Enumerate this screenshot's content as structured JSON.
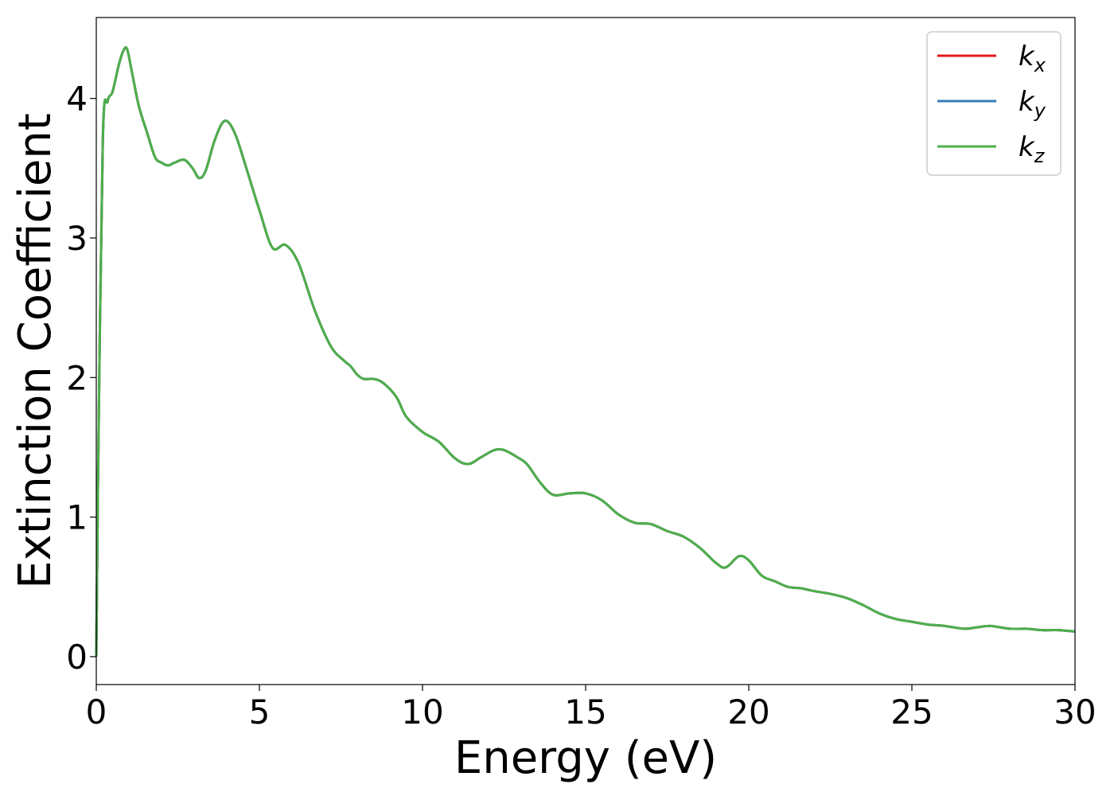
{
  "chart_data": {
    "type": "line",
    "xlabel": "Energy (eV)",
    "ylabel": "Extinction Coefficient",
    "xlim": [
      0,
      30
    ],
    "ylim": [
      -0.2,
      4.58
    ],
    "xticks": [
      0,
      5,
      10,
      15,
      20,
      25,
      30
    ],
    "yticks": [
      0,
      1,
      2,
      3,
      4
    ],
    "grid": false,
    "legend_position": "top-right",
    "series": [
      {
        "name": "k_x",
        "base": "k",
        "sub": "x",
        "color": "#e41a1c",
        "x": [
          0,
          0.05,
          0.2,
          0.35,
          0.5,
          0.7,
          0.85,
          0.95,
          1.1,
          1.3,
          1.55,
          1.8,
          2.0,
          2.2,
          2.4,
          2.7,
          2.95,
          3.15,
          3.35,
          3.6,
          3.85,
          4.05,
          4.3,
          4.6,
          5.0,
          5.4,
          5.8,
          6.2,
          6.7,
          7.2,
          7.6,
          7.8,
          8.0,
          8.2,
          8.5,
          8.8,
          9.2,
          9.5,
          10.0,
          10.5,
          11.0,
          11.4,
          11.8,
          12.2,
          12.5,
          12.9,
          13.2,
          13.6,
          14.0,
          14.5,
          15.0,
          15.5,
          16.0,
          16.5,
          17.0,
          17.5,
          18.0,
          18.5,
          19.0,
          19.3,
          19.7,
          20.0,
          20.4,
          20.8,
          21.2,
          21.6,
          22.0,
          22.5,
          23.0,
          23.5,
          24.0,
          24.5,
          25.0,
          25.5,
          26.0,
          26.6,
          27.0,
          27.4,
          28.0,
          28.5,
          29.0,
          29.5,
          30.0
        ],
        "values": [
          0.0,
          1.2,
          3.7,
          3.98,
          4.05,
          4.25,
          4.35,
          4.35,
          4.18,
          3.95,
          3.76,
          3.58,
          3.54,
          3.52,
          3.54,
          3.56,
          3.5,
          3.43,
          3.48,
          3.68,
          3.82,
          3.83,
          3.72,
          3.5,
          3.2,
          2.93,
          2.95,
          2.82,
          2.48,
          2.22,
          2.12,
          2.08,
          2.02,
          1.99,
          1.99,
          1.96,
          1.86,
          1.72,
          1.61,
          1.54,
          1.42,
          1.38,
          1.43,
          1.48,
          1.48,
          1.43,
          1.38,
          1.25,
          1.16,
          1.17,
          1.17,
          1.12,
          1.02,
          0.96,
          0.95,
          0.9,
          0.86,
          0.78,
          0.67,
          0.64,
          0.72,
          0.69,
          0.58,
          0.54,
          0.5,
          0.49,
          0.47,
          0.45,
          0.42,
          0.37,
          0.31,
          0.27,
          0.25,
          0.23,
          0.22,
          0.2,
          0.21,
          0.22,
          0.2,
          0.2,
          0.19,
          0.19,
          0.18
        ]
      },
      {
        "name": "k_y",
        "base": "k",
        "sub": "y",
        "color": "#377eb8",
        "x": [
          0,
          0.05,
          0.2,
          0.35,
          0.5,
          0.7,
          0.85,
          0.95,
          1.1,
          1.3,
          1.55,
          1.8,
          2.0,
          2.2,
          2.4,
          2.7,
          2.95,
          3.15,
          3.35,
          3.6,
          3.85,
          4.05,
          4.3,
          4.6,
          5.0,
          5.4,
          5.8,
          6.2,
          6.7,
          7.2,
          7.6,
          7.8,
          8.0,
          8.2,
          8.5,
          8.8,
          9.2,
          9.5,
          10.0,
          10.5,
          11.0,
          11.4,
          11.8,
          12.2,
          12.5,
          12.9,
          13.2,
          13.6,
          14.0,
          14.5,
          15.0,
          15.5,
          16.0,
          16.5,
          17.0,
          17.5,
          18.0,
          18.5,
          19.0,
          19.3,
          19.7,
          20.0,
          20.4,
          20.8,
          21.2,
          21.6,
          22.0,
          22.5,
          23.0,
          23.5,
          24.0,
          24.5,
          25.0,
          25.5,
          26.0,
          26.6,
          27.0,
          27.4,
          28.0,
          28.5,
          29.0,
          29.5,
          30.0
        ],
        "values": [
          0.0,
          1.2,
          3.7,
          3.98,
          4.05,
          4.25,
          4.35,
          4.35,
          4.18,
          3.95,
          3.76,
          3.58,
          3.54,
          3.52,
          3.54,
          3.56,
          3.5,
          3.43,
          3.48,
          3.68,
          3.82,
          3.83,
          3.72,
          3.5,
          3.2,
          2.93,
          2.95,
          2.82,
          2.48,
          2.22,
          2.12,
          2.08,
          2.02,
          1.99,
          1.99,
          1.96,
          1.86,
          1.72,
          1.61,
          1.54,
          1.42,
          1.38,
          1.43,
          1.48,
          1.48,
          1.43,
          1.38,
          1.25,
          1.16,
          1.17,
          1.17,
          1.12,
          1.02,
          0.96,
          0.95,
          0.9,
          0.86,
          0.78,
          0.67,
          0.64,
          0.72,
          0.69,
          0.58,
          0.54,
          0.5,
          0.49,
          0.47,
          0.45,
          0.42,
          0.37,
          0.31,
          0.27,
          0.25,
          0.23,
          0.22,
          0.2,
          0.21,
          0.22,
          0.2,
          0.2,
          0.19,
          0.19,
          0.18
        ]
      },
      {
        "name": "k_z",
        "base": "k",
        "sub": "z",
        "color": "#4daf4a",
        "x": [
          0,
          0.05,
          0.2,
          0.35,
          0.5,
          0.7,
          0.85,
          0.95,
          1.1,
          1.3,
          1.55,
          1.8,
          2.0,
          2.2,
          2.4,
          2.7,
          2.95,
          3.15,
          3.35,
          3.6,
          3.85,
          4.05,
          4.3,
          4.6,
          5.0,
          5.4,
          5.8,
          6.2,
          6.7,
          7.2,
          7.6,
          7.8,
          8.0,
          8.2,
          8.5,
          8.8,
          9.2,
          9.5,
          10.0,
          10.5,
          11.0,
          11.4,
          11.8,
          12.2,
          12.5,
          12.9,
          13.2,
          13.6,
          14.0,
          14.5,
          15.0,
          15.5,
          16.0,
          16.5,
          17.0,
          17.5,
          18.0,
          18.5,
          19.0,
          19.3,
          19.7,
          20.0,
          20.4,
          20.8,
          21.2,
          21.6,
          22.0,
          22.5,
          23.0,
          23.5,
          24.0,
          24.5,
          25.0,
          25.5,
          26.0,
          26.6,
          27.0,
          27.4,
          28.0,
          28.5,
          29.0,
          29.5,
          30.0
        ],
        "values": [
          0.0,
          1.2,
          3.7,
          3.98,
          4.05,
          4.25,
          4.35,
          4.35,
          4.18,
          3.95,
          3.76,
          3.58,
          3.54,
          3.52,
          3.54,
          3.56,
          3.5,
          3.43,
          3.48,
          3.68,
          3.82,
          3.83,
          3.72,
          3.5,
          3.2,
          2.93,
          2.95,
          2.82,
          2.48,
          2.22,
          2.12,
          2.08,
          2.02,
          1.99,
          1.99,
          1.96,
          1.86,
          1.72,
          1.61,
          1.54,
          1.42,
          1.38,
          1.43,
          1.48,
          1.48,
          1.43,
          1.38,
          1.25,
          1.16,
          1.17,
          1.17,
          1.12,
          1.02,
          0.96,
          0.95,
          0.9,
          0.86,
          0.78,
          0.67,
          0.64,
          0.72,
          0.69,
          0.58,
          0.54,
          0.5,
          0.49,
          0.47,
          0.45,
          0.42,
          0.37,
          0.31,
          0.27,
          0.25,
          0.23,
          0.22,
          0.2,
          0.21,
          0.22,
          0.2,
          0.2,
          0.19,
          0.19,
          0.18
        ]
      }
    ]
  }
}
